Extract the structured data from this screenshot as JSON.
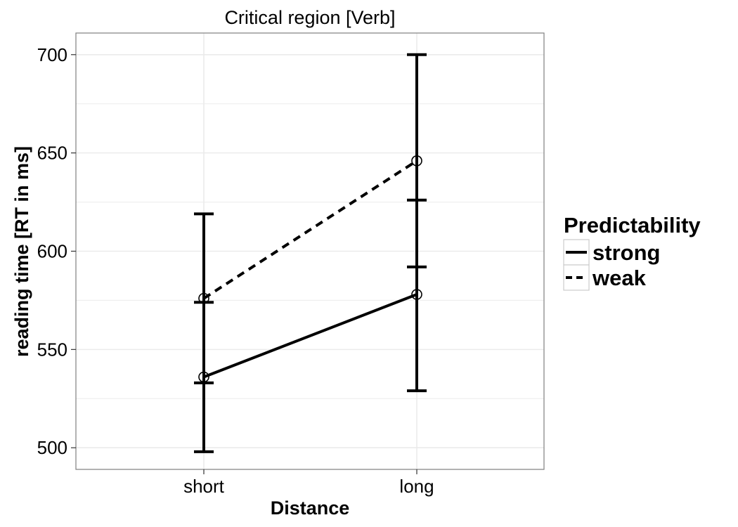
{
  "chart_data": {
    "type": "line",
    "title": "Critical region [Verb]",
    "xlabel": "Distance",
    "ylabel": "reading time [RT in ms]",
    "categories": [
      "short",
      "long"
    ],
    "ylim": [
      489,
      711
    ],
    "yticks": [
      500,
      550,
      600,
      650,
      700
    ],
    "grid": true,
    "legend": {
      "title": "Predictability",
      "position": "right"
    },
    "series": [
      {
        "name": "strong",
        "line_style": "solid",
        "values": [
          536,
          578
        ],
        "error_low": [
          498,
          529
        ],
        "error_high": [
          574,
          626
        ]
      },
      {
        "name": "weak",
        "line_style": "dashed",
        "values": [
          576,
          646
        ],
        "error_low": [
          533,
          592
        ],
        "error_high": [
          619,
          700
        ]
      }
    ],
    "colors": {
      "line": "#000000",
      "grid": "#ebebeb",
      "panel_border": "#7f7f7f"
    }
  }
}
